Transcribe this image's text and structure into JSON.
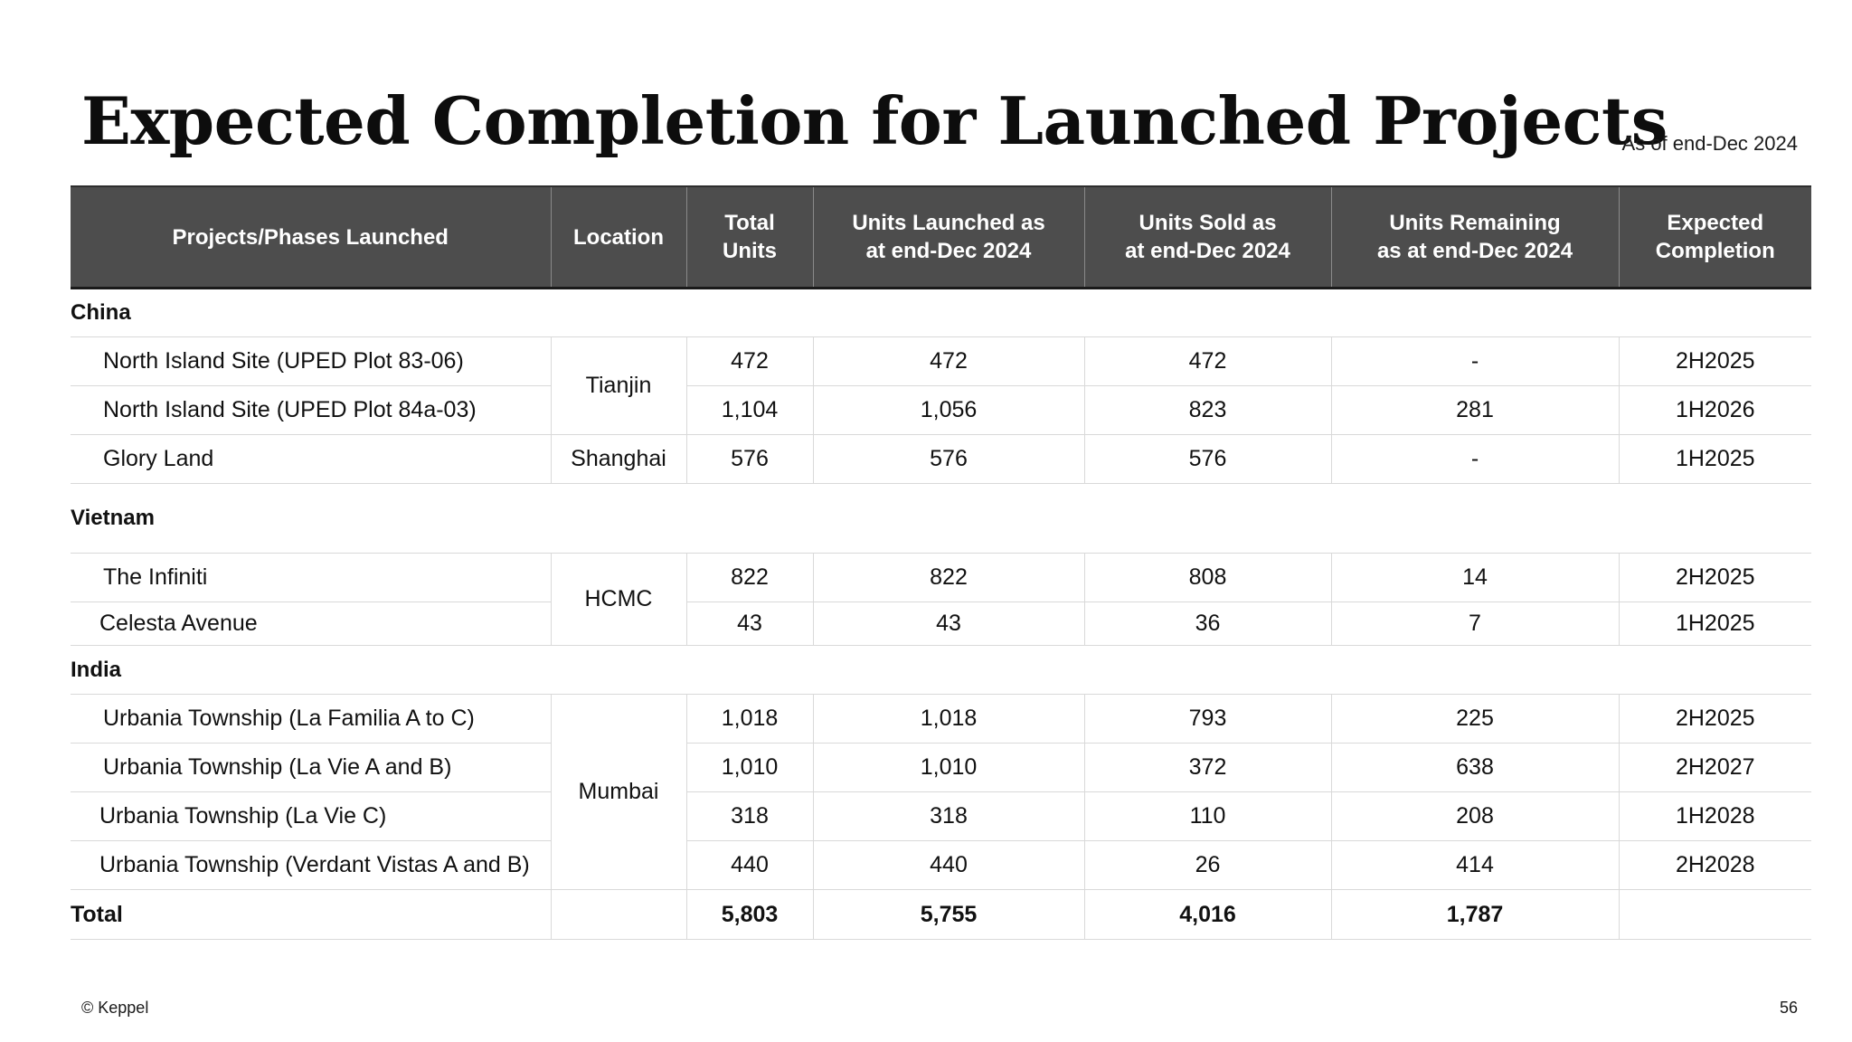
{
  "header": {
    "title": "Expected Completion for Launched Projects",
    "as_of": "As of end-Dec 2024"
  },
  "table": {
    "columns": [
      "Projects/Phases Launched",
      "Location",
      "Total\nUnits",
      "Units Launched as\nat end-Dec 2024",
      "Units Sold as\nat end-Dec 2024",
      "Units Remaining\nas at end-Dec 2024",
      "Expected\nCompletion"
    ],
    "sections": [
      {
        "name": "China",
        "rows": [
          {
            "project": "North Island Site (UPED Plot 83-06)",
            "location": "Tianjin",
            "total": "472",
            "launched": "472",
            "sold": "472",
            "remaining": "-",
            "completion": "2H2025"
          },
          {
            "project": "North Island Site (UPED Plot 84a-03)",
            "location": "Tianjin",
            "total": "1,104",
            "launched": "1,056",
            "sold": "823",
            "remaining": "281",
            "completion": "1H2026"
          },
          {
            "project": "Glory Land",
            "location": "Shanghai",
            "total": "576",
            "launched": "576",
            "sold": "576",
            "remaining": "-",
            "completion": "1H2025"
          }
        ]
      },
      {
        "name": "Vietnam",
        "rows": [
          {
            "project": "The Infiniti",
            "location": "HCMC",
            "total": "822",
            "launched": "822",
            "sold": "808",
            "remaining": "14",
            "completion": "2H2025"
          },
          {
            "project": "Celesta Avenue",
            "location": "HCMC",
            "total": "43",
            "launched": "43",
            "sold": "36",
            "remaining": "7",
            "completion": "1H2025"
          }
        ]
      },
      {
        "name": "India",
        "rows": [
          {
            "project": "Urbania Township (La Familia A to C)",
            "location": "Mumbai",
            "total": "1,018",
            "launched": "1,018",
            "sold": "793",
            "remaining": "225",
            "completion": "2H2025"
          },
          {
            "project": "Urbania Township (La Vie A and B)",
            "location": "Mumbai",
            "total": "1,010",
            "launched": "1,010",
            "sold": "372",
            "remaining": "638",
            "completion": "2H2027"
          },
          {
            "project": "Urbania Township (La Vie C)",
            "location": "Mumbai",
            "total": "318",
            "launched": "318",
            "sold": "110",
            "remaining": "208",
            "completion": "1H2028"
          },
          {
            "project": "Urbania Township (Verdant Vistas A and B)",
            "location": "Mumbai",
            "total": "440",
            "launched": "440",
            "sold": "26",
            "remaining": "414",
            "completion": "2H2028"
          }
        ]
      }
    ],
    "total": {
      "label": "Total",
      "total": "5,803",
      "launched": "5,755",
      "sold": "4,016",
      "remaining": "1,787"
    }
  },
  "footer": {
    "copyright": "© Keppel",
    "page_number": "56"
  }
}
